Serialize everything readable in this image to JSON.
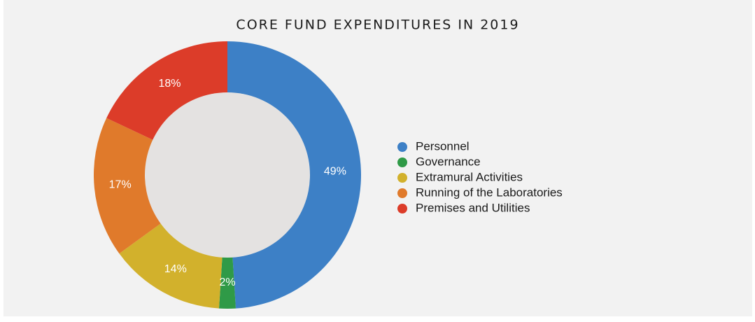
{
  "chart_data": {
    "type": "donut",
    "title": "CORE FUND EXPENDITURES IN 2019",
    "categories": [
      "Personnel",
      "Governance",
      "Extramural Activities",
      "Running of the Laboratories",
      "Premises and Utilities"
    ],
    "values": [
      49,
      2,
      14,
      17,
      18
    ],
    "value_labels": [
      "49%",
      "2%",
      "14%",
      "17%",
      "18%"
    ],
    "colors": [
      "#3d80c6",
      "#2f9a47",
      "#d2b12c",
      "#e07a2b",
      "#dc3c29"
    ],
    "legend": "right"
  }
}
